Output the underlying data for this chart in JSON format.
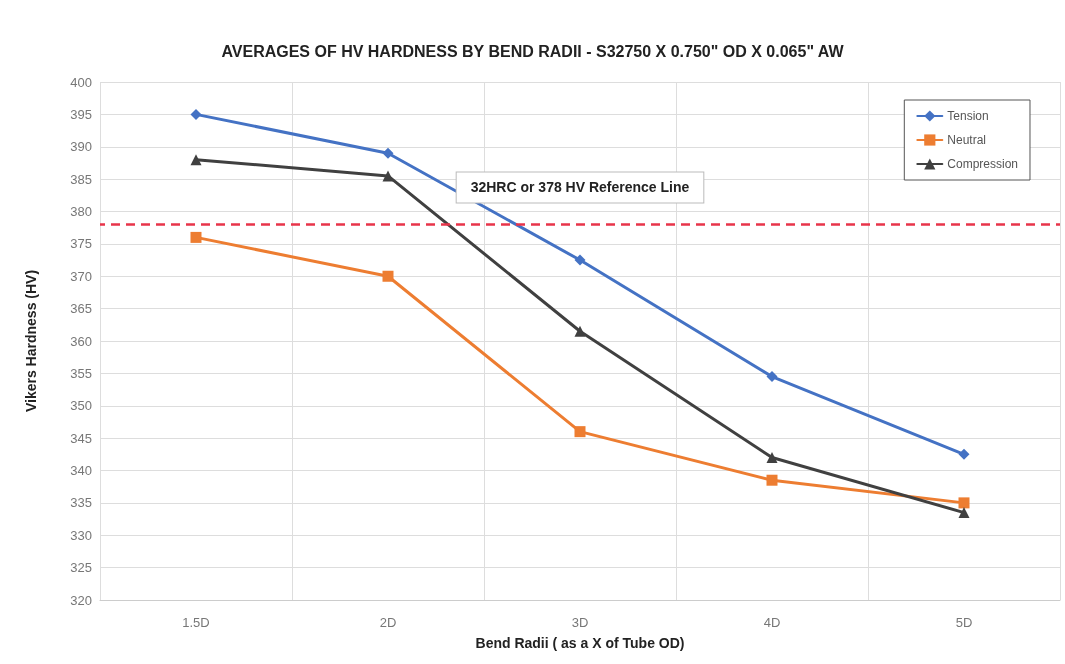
{
  "chart_data": {
    "type": "line",
    "title": "AVERAGES OF HV HARDNESS BY BEND RADII - S32750 X 0.750\" OD X 0.065\" AW",
    "xlabel": "Bend Radii ( as a X of Tube OD)",
    "ylabel": "Vikers Hardness (HV)",
    "categories": [
      "1.5D",
      "2D",
      "3D",
      "4D",
      "5D"
    ],
    "series": [
      {
        "name": "Tension",
        "color": "#4472c4",
        "marker": "diamond",
        "values": [
          395,
          389,
          372.5,
          354.5,
          342.5
        ]
      },
      {
        "name": "Neutral",
        "color": "#ed7d31",
        "marker": "square",
        "values": [
          376,
          370,
          346,
          338.5,
          335
        ]
      },
      {
        "name": "Compression",
        "color": "#404040",
        "marker": "triangle",
        "values": [
          388,
          385.5,
          361.5,
          342,
          333.5
        ]
      }
    ],
    "ylim": [
      320,
      400
    ],
    "yticks": [
      320,
      325,
      330,
      335,
      340,
      345,
      350,
      355,
      360,
      365,
      370,
      375,
      380,
      385,
      390,
      395,
      400
    ],
    "ref_lines": [
      {
        "axis": "y",
        "value": 378,
        "label": "32HRC or 378 HV Reference Line",
        "color": "#e8344a",
        "line_style": "dashed"
      }
    ],
    "grid": true,
    "legend": "top right"
  }
}
